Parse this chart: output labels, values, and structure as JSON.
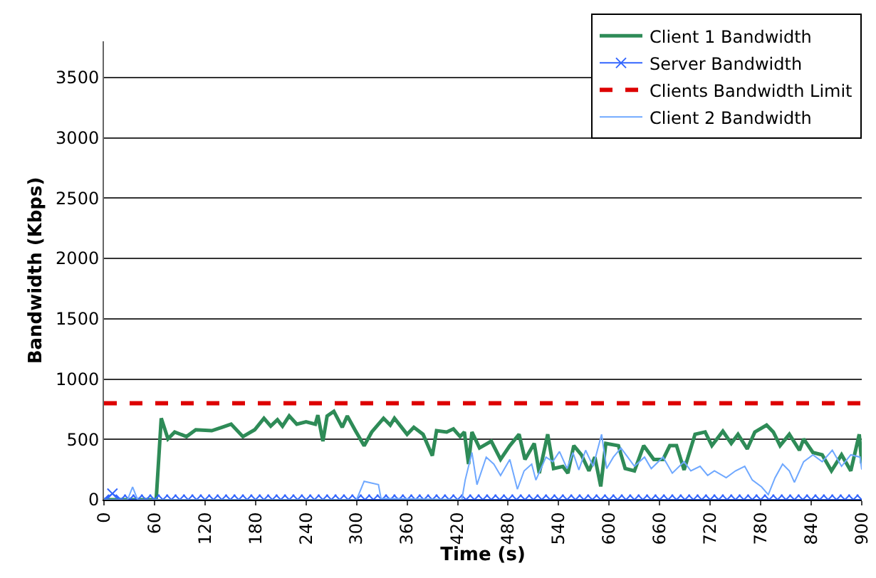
{
  "chart_data": {
    "type": "line",
    "xlabel": "Time (s)",
    "ylabel": "Bandwidth (Kbps)",
    "xlim": [
      0,
      900
    ],
    "xticks": [
      0,
      60,
      120,
      180,
      240,
      300,
      360,
      420,
      480,
      540,
      600,
      660,
      720,
      780,
      840,
      900
    ],
    "ylim": [
      0,
      3800
    ],
    "yticks": [
      0,
      500,
      1000,
      1500,
      2000,
      2500,
      3000,
      3500
    ],
    "grid": "y",
    "legend": "top right",
    "series": [
      {
        "name": "Client 1 Bandwidth",
        "color": "#2e8b57",
        "marker": "none",
        "line_style": "solid",
        "x": [
          0,
          30,
          62,
          68,
          76,
          84,
          98,
          109,
          128,
          140,
          151,
          165,
          179,
          190,
          198,
          206,
          212,
          220,
          229,
          240,
          251,
          254,
          260,
          265,
          273,
          283,
          289,
          298,
          309,
          318,
          332,
          340,
          345,
          360,
          368,
          379,
          390,
          395,
          407,
          415,
          423,
          428,
          433,
          437,
          446,
          460,
          471,
          482,
          493,
          500,
          511,
          517,
          527,
          534,
          545,
          551,
          558,
          567,
          576,
          583,
          590,
          596,
          611,
          619,
          630,
          641,
          653,
          664,
          672,
          680,
          689,
          702,
          714,
          722,
          735,
          745,
          753,
          764,
          773,
          787,
          795,
          803,
          814,
          826,
          831,
          842,
          853,
          864,
          876,
          887,
          897,
          900
        ],
        "values": [
          0,
          0,
          0,
          675,
          504,
          561,
          523,
          580,
          572,
          600,
          626,
          523,
          580,
          675,
          610,
          663,
          610,
          694,
          626,
          645,
          626,
          701,
          485,
          694,
          732,
          600,
          694,
          580,
          447,
          561,
          675,
          618,
          675,
          542,
          600,
          542,
          365,
          572,
          561,
          587,
          523,
          561,
          295,
          561,
          429,
          485,
          334,
          448,
          542,
          334,
          466,
          220,
          542,
          258,
          276,
          220,
          448,
          372,
          239,
          353,
          110,
          466,
          448,
          258,
          239,
          448,
          334,
          334,
          448,
          448,
          247,
          542,
          561,
          448,
          568,
          466,
          542,
          421,
          561,
          618,
          561,
          448,
          542,
          410,
          504,
          391,
          372,
          239,
          372,
          239,
          542,
          300
        ]
      },
      {
        "name": "Server Bandwidth",
        "color": "#3366ff",
        "marker": "cross",
        "line_style": "solid",
        "x": [
          0,
          10,
          20,
          30,
          40,
          50,
          60,
          70,
          80,
          90,
          100,
          110,
          120,
          130,
          140,
          150,
          160,
          170,
          180,
          190,
          200,
          210,
          220,
          230,
          240,
          250,
          260,
          270,
          280,
          290,
          300,
          310,
          320,
          330,
          340,
          350,
          360,
          370,
          380,
          390,
          400,
          410,
          420,
          430,
          440,
          450,
          460,
          470,
          480,
          490,
          500,
          510,
          520,
          530,
          540,
          550,
          560,
          570,
          580,
          590,
          600,
          610,
          620,
          630,
          640,
          650,
          660,
          670,
          680,
          690,
          700,
          710,
          720,
          730,
          740,
          750,
          760,
          770,
          780,
          790,
          800,
          810,
          820,
          830,
          840,
          850,
          860,
          870,
          880,
          890,
          900
        ],
        "values": [
          0,
          50,
          0,
          0,
          0,
          0,
          0,
          0,
          0,
          0,
          0,
          0,
          0,
          0,
          0,
          0,
          0,
          0,
          0,
          0,
          0,
          0,
          0,
          0,
          0,
          0,
          0,
          0,
          0,
          0,
          0,
          0,
          0,
          0,
          0,
          0,
          0,
          0,
          0,
          0,
          0,
          0,
          0,
          0,
          0,
          0,
          0,
          0,
          0,
          0,
          0,
          0,
          0,
          0,
          0,
          0,
          0,
          0,
          0,
          0,
          0,
          0,
          0,
          0,
          0,
          0,
          0,
          0,
          0,
          0,
          0,
          0,
          0,
          0,
          0,
          0,
          0,
          0,
          0,
          0,
          0,
          0,
          0,
          0,
          0,
          0,
          0,
          0,
          0,
          0,
          0
        ]
      },
      {
        "name": "Clients Bandwidth Limit",
        "color": "#dd0000",
        "marker": "none",
        "line_style": "dashed",
        "x": [
          0,
          900
        ],
        "values": [
          800,
          800
        ]
      },
      {
        "name": "Client 2 Bandwidth",
        "color": "#6fa8ff",
        "marker": "none",
        "line_style": "solid",
        "x": [
          0,
          28,
          34,
          40,
          300,
          309,
          326,
          329,
          425,
          429,
          437,
          443,
          454,
          463,
          471,
          482,
          491,
          499,
          508,
          513,
          525,
          533,
          541,
          550,
          557,
          564,
          572,
          581,
          591,
          597,
          605,
          614,
          622,
          630,
          642,
          650,
          664,
          675,
          689,
          697,
          708,
          717,
          725,
          739,
          750,
          761,
          770,
          781,
          789,
          797,
          806,
          814,
          820,
          831,
          842,
          853,
          865,
          876,
          887,
          898,
          900
        ],
        "values": [
          0,
          0,
          106,
          0,
          0,
          152,
          125,
          11,
          0,
          163,
          391,
          125,
          353,
          295,
          201,
          334,
          87,
          239,
          295,
          163,
          353,
          315,
          399,
          258,
          391,
          247,
          410,
          277,
          542,
          258,
          353,
          429,
          353,
          277,
          353,
          258,
          353,
          220,
          315,
          239,
          277,
          201,
          239,
          182,
          239,
          277,
          163,
          106,
          42,
          182,
          295,
          239,
          144,
          315,
          372,
          315,
          410,
          277,
          372,
          353,
          250
        ]
      }
    ]
  }
}
